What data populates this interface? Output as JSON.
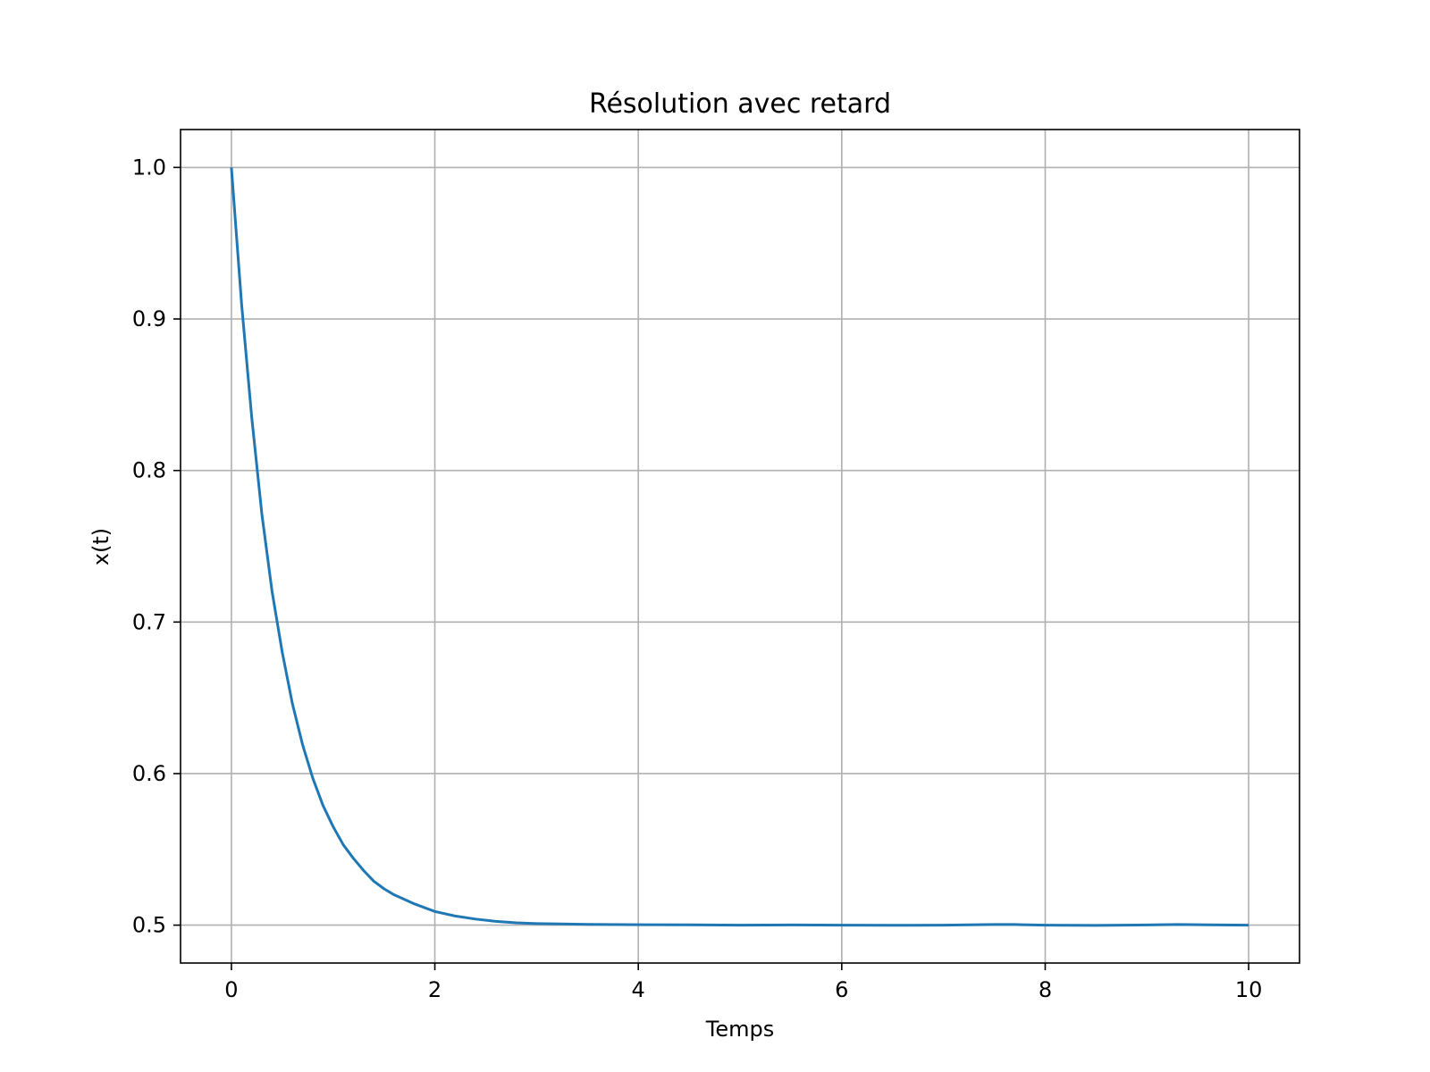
{
  "chart_data": {
    "type": "line",
    "title": "Résolution avec retard",
    "xlabel": "Temps",
    "ylabel": "x(t)",
    "xlim": [
      -0.5,
      10.5
    ],
    "ylim": [
      0.475,
      1.025
    ],
    "xticks": [
      0,
      2,
      4,
      6,
      8,
      10
    ],
    "xtick_labels": [
      "0",
      "2",
      "4",
      "6",
      "8",
      "10"
    ],
    "yticks": [
      0.5,
      0.6,
      0.7,
      0.8,
      0.9,
      1.0
    ],
    "ytick_labels": [
      "0.5",
      "0.6",
      "0.7",
      "0.8",
      "0.9",
      "1.0"
    ],
    "grid": true,
    "color": "#1f77b4",
    "series": [
      {
        "x": [
          0,
          0.1,
          0.2,
          0.3,
          0.4,
          0.5,
          0.6,
          0.7,
          0.8,
          0.9,
          1.0,
          1.1,
          1.2,
          1.3,
          1.4,
          1.5,
          1.6,
          1.8,
          2.0,
          2.2,
          2.4,
          2.6,
          2.8,
          3.0,
          3.5,
          4.0,
          4.5,
          5.0,
          5.5,
          6.0,
          6.5,
          7.0,
          7.5,
          7.7,
          8.0,
          8.5,
          9.0,
          9.3,
          9.6,
          10.0
        ],
        "y": [
          1.0,
          0.91,
          0.835,
          0.771,
          0.72,
          0.68,
          0.646,
          0.619,
          0.597,
          0.579,
          0.565,
          0.553,
          0.544,
          0.536,
          0.529,
          0.524,
          0.52,
          0.514,
          0.509,
          0.506,
          0.504,
          0.5025,
          0.5015,
          0.501,
          0.5005,
          0.5003,
          0.5002,
          0.5,
          0.5001,
          0.5,
          0.4999,
          0.5,
          0.5004,
          0.5004,
          0.5,
          0.4998,
          0.5001,
          0.5004,
          0.5002,
          0.5
        ]
      }
    ]
  }
}
